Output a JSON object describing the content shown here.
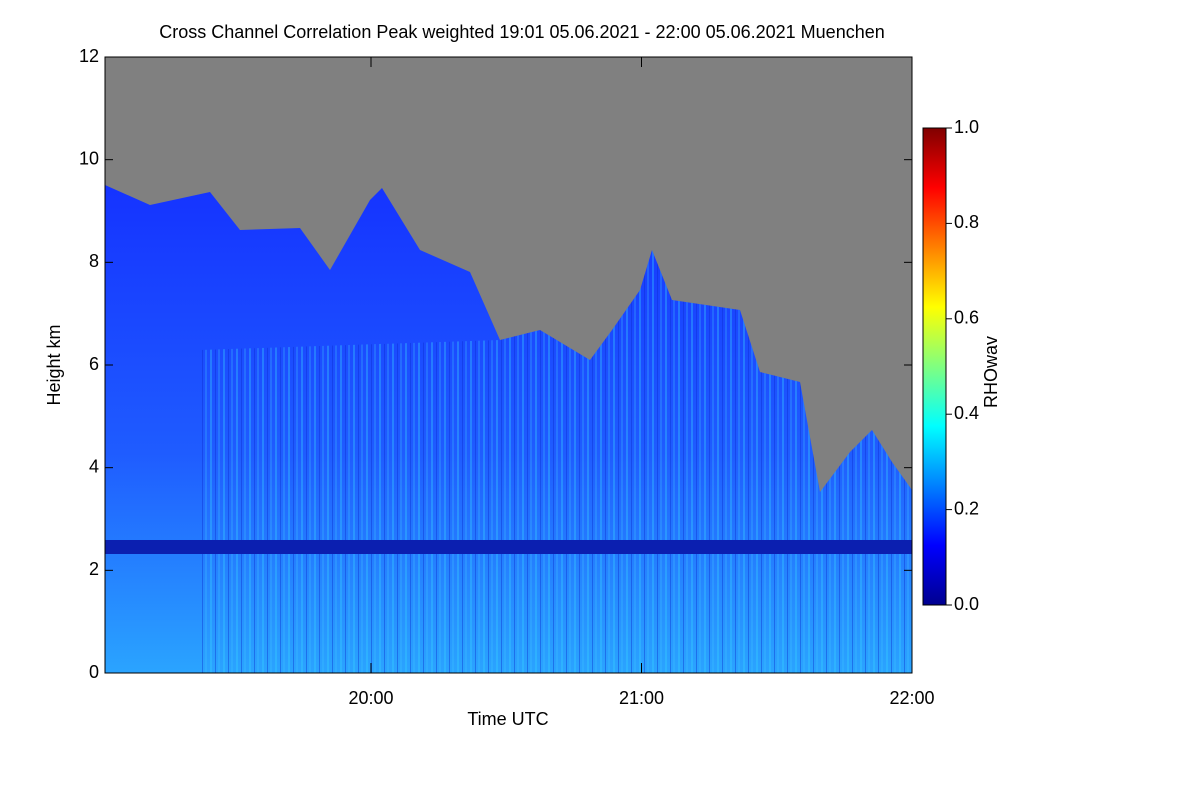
{
  "chart_data": {
    "type": "heatmap",
    "title": "Cross Channel Correlation Peak weighted   19:01 05.06.2021 - 22:00 05.06.2021 Muenchen",
    "xlabel": "Time UTC",
    "ylabel": "Height km",
    "colorbar_label": "RHOwav",
    "xlim": [
      19.0167,
      22.0
    ],
    "xticks": [
      {
        "value": 20,
        "label": "20:00"
      },
      {
        "value": 21,
        "label": "21:00"
      },
      {
        "value": 22,
        "label": "22:00"
      }
    ],
    "ylim": [
      0,
      12
    ],
    "yticks": [
      0,
      2,
      4,
      6,
      8,
      10,
      12
    ],
    "clim": [
      0,
      1
    ],
    "cticks": [
      {
        "value": 0,
        "label": "0.0"
      },
      {
        "value": 0.2,
        "label": "0.2"
      },
      {
        "value": 0.4,
        "label": "0.4"
      },
      {
        "value": 0.6,
        "label": "0.6"
      },
      {
        "value": 0.8,
        "label": "0.8"
      },
      {
        "value": 1.0,
        "label": "1.0"
      }
    ],
    "colormap": [
      "#00008f",
      "#0000ff",
      "#0080ff",
      "#00ffff",
      "#80ff80",
      "#ffff00",
      "#ff8000",
      "#ff0000",
      "#800000"
    ]
  }
}
